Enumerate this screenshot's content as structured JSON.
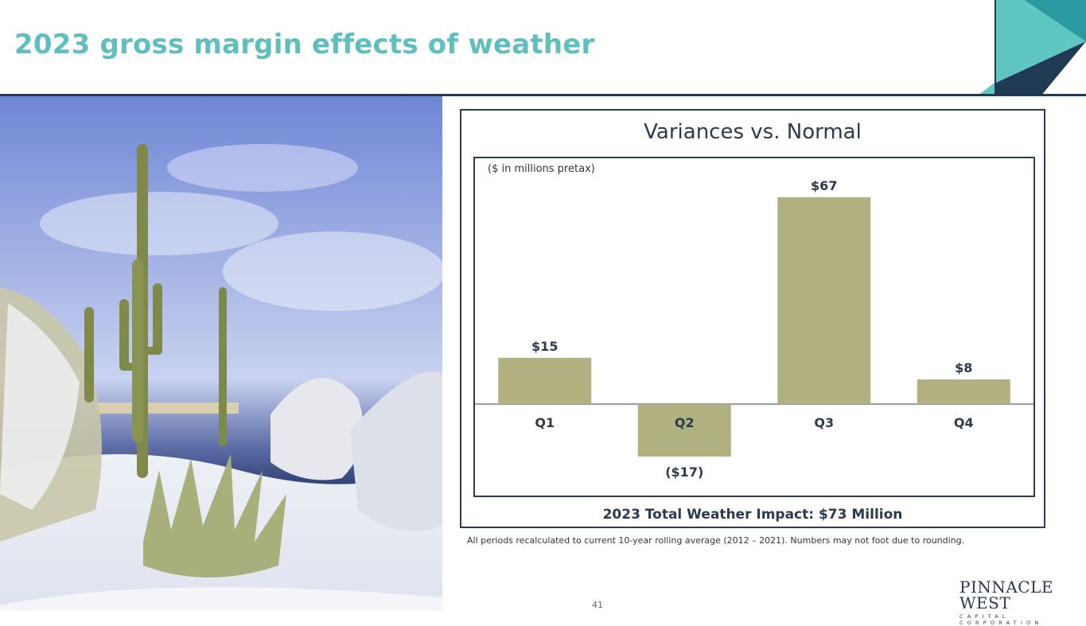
{
  "slide": {
    "title": "2023 gross margin effects of weather",
    "page_number": "41",
    "footnote": "All periods recalculated to current 10-year rolling average (2012 – 2021). Numbers may not foot due to rounding.",
    "logo": {
      "name": "PINNACLE WEST",
      "tagline": "CAPITAL CORPORATION"
    },
    "colors": {
      "title": "#5fbfbf",
      "bar": "#b1b080",
      "navy": "#1f3a52",
      "teal": "#5fc6c2"
    }
  },
  "chart": {
    "title": "Variances vs. Normal",
    "units_note": "($ in millions pretax)",
    "total_label": "2023 Total Weather Impact: $73 Million"
  },
  "chart_data": {
    "type": "bar",
    "title": "Variances vs. Normal",
    "categories": [
      "Q1",
      "Q2",
      "Q3",
      "Q4"
    ],
    "values": [
      15,
      -17,
      67,
      8
    ],
    "labels": [
      "$15",
      "($17)",
      "$67",
      "$8"
    ],
    "ylabel": "$ in millions pretax",
    "ylim": [
      -20,
      70
    ],
    "grid": false
  }
}
